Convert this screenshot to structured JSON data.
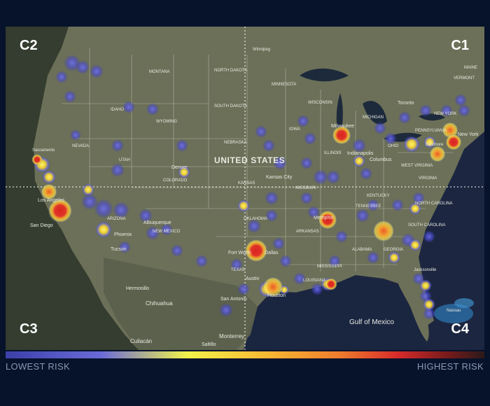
{
  "quadrants": {
    "c1": "C1",
    "c2": "C2",
    "c3": "C3",
    "c4": "C4"
  },
  "legend": {
    "low_label": "LOWEST RISK",
    "high_label": "HIGHEST RISK",
    "gradient_colors": [
      "#3b3fa8",
      "#6b6bd8",
      "#f2f24a",
      "#f7b732",
      "#ef7b2d",
      "#d62a2a",
      "#7a1b1b"
    ]
  },
  "map": {
    "country_label": "UNITED STATES",
    "gulf_label": "Gulf of Mexico",
    "state_labels": [
      "MONTANA",
      "NORTH DAKOTA",
      "SOUTH DAKOTA",
      "MINNESOTA",
      "WISCONSIN",
      "MICHIGAN",
      "IDAHO",
      "WYOMING",
      "NEBRASKA",
      "IOWA",
      "ILLINOIS",
      "OHIO",
      "NEVADA",
      "UTAH",
      "COLORADO",
      "KANSAS",
      "MISSOURI",
      "KENTUCKY",
      "ARIZONA",
      "NEW MEXICO",
      "OKLAHOMA",
      "ARKANSAS",
      "TENNESSEE",
      "TEXAS",
      "LOUISIANA",
      "MISSISSIPPI",
      "ALABAMA",
      "GEORGIA",
      "SOUTH CAROLINA",
      "NORTH CAROLINA",
      "VIRGINIA",
      "WEST VIRGINIA",
      "PENNSYLVANIA",
      "NEW YORK",
      "VERMONT",
      "MAINE"
    ],
    "city_labels": [
      "Winnipeg",
      "Toronto",
      "Milwaukee",
      "Indianapolis",
      "Columbus",
      "New York",
      "Denver",
      "Kansas City",
      "Memphis",
      "Albuquerque",
      "Phoenix",
      "Tucson",
      "San Diego",
      "Los Angeles",
      "Fort Worth",
      "Dallas",
      "Austin",
      "San Antonio",
      "Houston",
      "Hermosillo",
      "Chihuahua",
      "Culiacán",
      "Saltillo",
      "Monterrey",
      "Nassau",
      "Jacksonville",
      "Sacramento",
      "Baltimore"
    ]
  }
}
